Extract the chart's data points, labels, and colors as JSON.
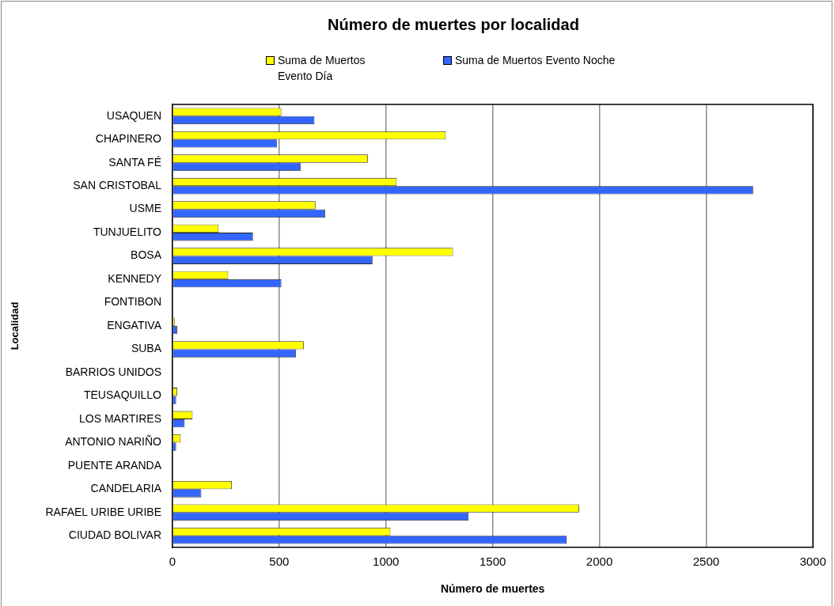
{
  "chart_data": {
    "type": "bar",
    "orientation": "horizontal",
    "title": "Número de muertes por localidad",
    "xlabel": "Número de muertes",
    "ylabel": "Localidad",
    "categories": [
      "USAQUEN",
      "CHAPINERO",
      "SANTA FÉ",
      "SAN CRISTOBAL",
      "USME",
      "TUNJUELITO",
      "BOSA",
      "KENNEDY",
      "FONTIBON",
      "ENGATIVA",
      "SUBA",
      "BARRIOS UNIDOS",
      "TEUSAQUILLO",
      "LOS MARTIRES",
      "ANTONIO NARIÑO",
      "PUENTE ARANDA",
      "CANDELARIA",
      "RAFAEL URIBE URIBE",
      "CIUDAD BOLIVAR"
    ],
    "series": [
      {
        "name": "Suma de Muertos Evento Día",
        "color": "#ffff00",
        "values": [
          510,
          1280,
          915,
          1050,
          670,
          216,
          1314,
          261,
          0,
          10,
          615,
          0,
          22,
          94,
          38,
          0,
          278,
          1905,
          1021
        ]
      },
      {
        "name": "Suma de Muertos Evento Noche",
        "color": "#3366ff",
        "values": [
          665,
          490,
          600,
          2720,
          715,
          377,
          937,
          510,
          0,
          22,
          578,
          0,
          17,
          57,
          17,
          0,
          135,
          1387,
          1846
        ]
      }
    ],
    "xlim": [
      0,
      3000
    ],
    "xticks": [
      0,
      500,
      1000,
      1500,
      2000,
      2500,
      3000
    ],
    "grid": "x",
    "legend": "top"
  }
}
